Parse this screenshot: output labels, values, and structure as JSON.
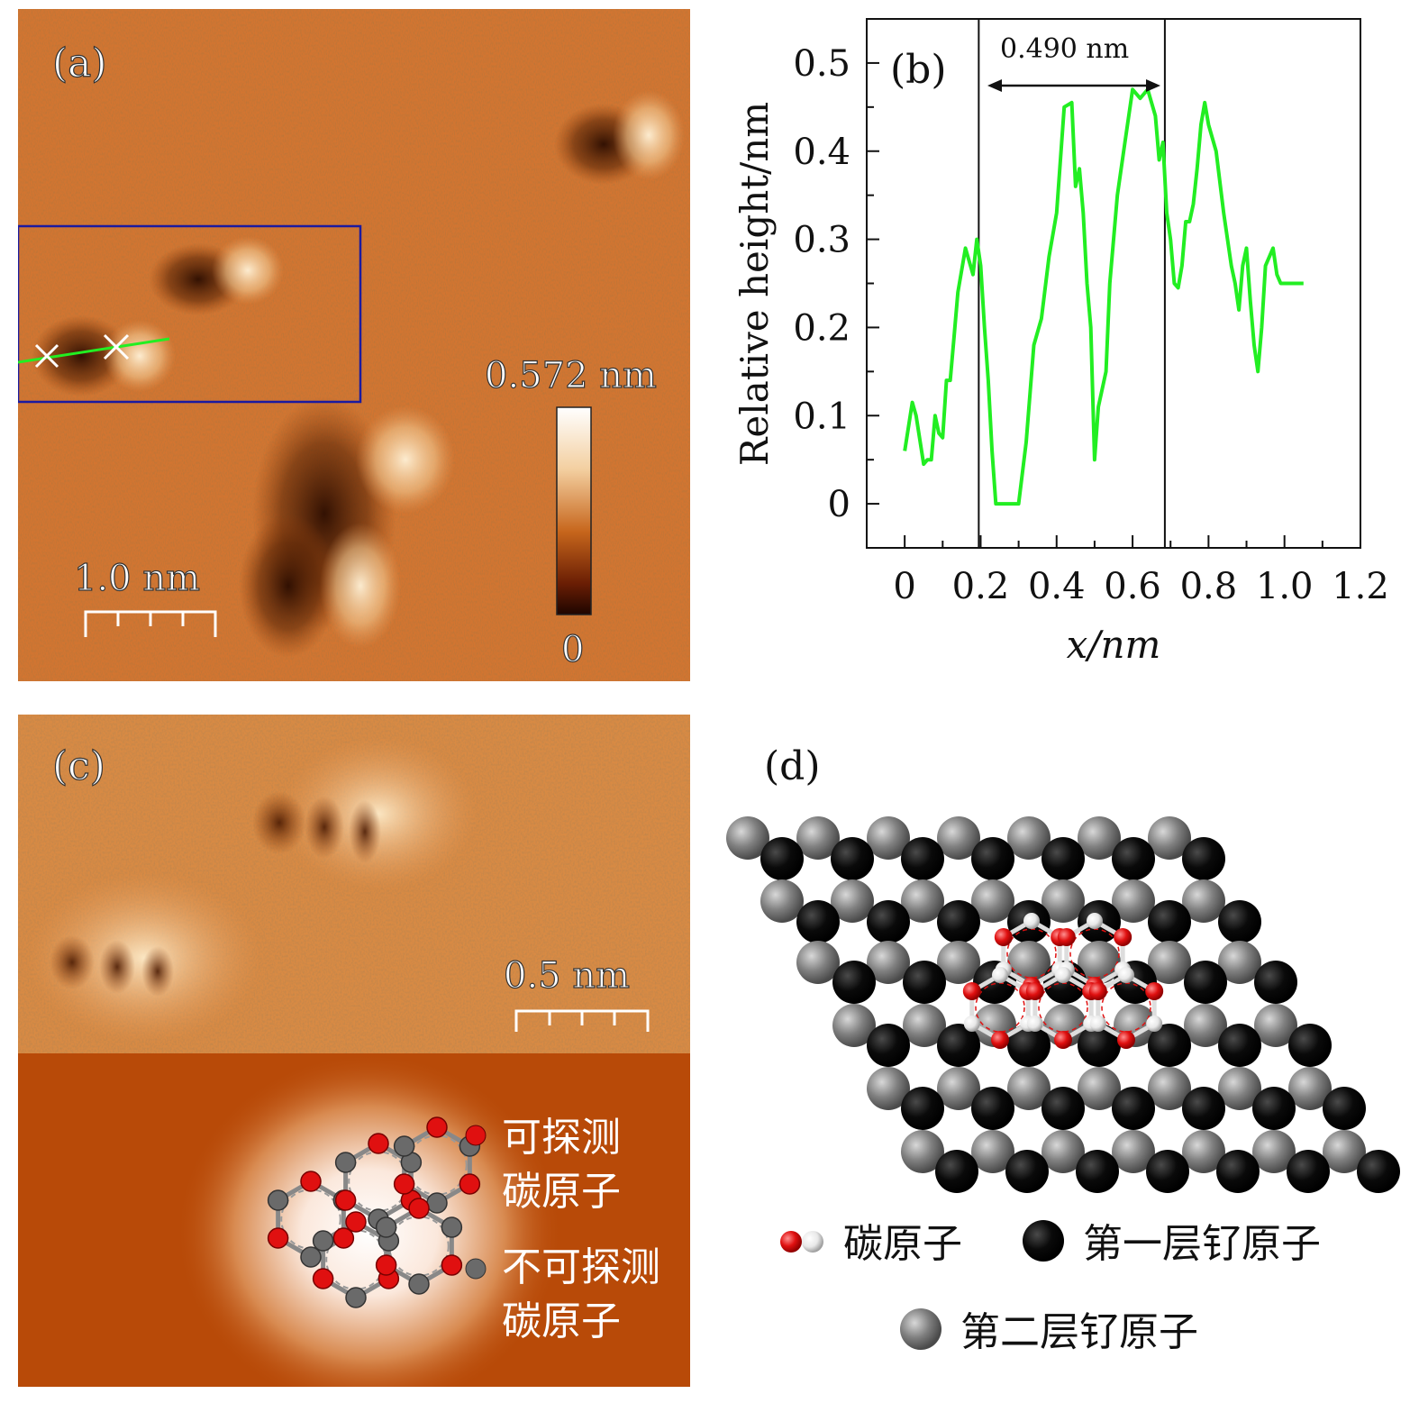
{
  "panel_a": {
    "label": "(a)",
    "colorbar_max": "0.572 nm",
    "colorbar_min": "0",
    "scalebar": "1.0 nm"
  },
  "panel_b": {
    "label": "(b)",
    "annotation": "0.490 nm"
  },
  "panel_c": {
    "label": "(c)",
    "scalebar": "0.5 nm",
    "legend_detectable_line1": "可探测",
    "legend_detectable_line2": "碳原子",
    "legend_undetectable_line1": "不可探测",
    "legend_undetectable_line2": "碳原子"
  },
  "panel_d": {
    "label": "(d)",
    "legend_carbon": "碳原子",
    "legend_ru1": "第一层钌原子",
    "legend_ru2": "第二层钌原子"
  },
  "colors": {
    "stm_base": "#c8641e",
    "stm_bottom": "#b84a08",
    "line_green": "#22ee22",
    "box_blue": "#1a1aa0",
    "carbon_red": "#e01010",
    "ru_black": "#0a0a0a",
    "ru_gray": "#808080"
  },
  "chart_data": {
    "type": "line",
    "xlabel": "x/nm",
    "ylabel": "Relative height/nm",
    "xlim": [
      -0.1,
      1.2
    ],
    "ylim": [
      -0.05,
      0.55
    ],
    "xticks": [
      "0",
      "0.2",
      "0.4",
      "0.6",
      "0.8",
      "1.0",
      "1.2"
    ],
    "yticks": [
      "0",
      "0.1",
      "0.2",
      "0.3",
      "0.4",
      "0.5"
    ],
    "vlines": [
      0.195,
      0.685
    ],
    "series": [
      {
        "x": [
          0.0,
          0.02,
          0.03,
          0.05,
          0.06,
          0.07,
          0.08,
          0.09,
          0.1,
          0.11,
          0.12,
          0.13,
          0.14,
          0.16,
          0.18,
          0.19,
          0.2,
          0.21,
          0.22,
          0.23,
          0.24,
          0.26,
          0.28,
          0.3,
          0.32,
          0.34,
          0.36,
          0.38,
          0.4,
          0.42,
          0.44,
          0.45,
          0.46,
          0.47,
          0.48,
          0.49,
          0.5,
          0.51,
          0.53,
          0.54,
          0.56,
          0.58,
          0.6,
          0.62,
          0.64,
          0.66,
          0.67,
          0.68,
          0.69,
          0.7,
          0.71,
          0.72,
          0.73,
          0.74,
          0.75,
          0.76,
          0.77,
          0.78,
          0.79,
          0.8,
          0.82,
          0.84,
          0.86,
          0.87,
          0.88,
          0.89,
          0.9,
          0.91,
          0.92,
          0.93,
          0.94,
          0.95,
          0.96,
          0.97,
          0.98,
          0.99,
          1.0,
          1.01,
          1.02,
          1.03,
          1.04,
          1.05
        ],
        "y": [
          0.06,
          0.115,
          0.1,
          0.045,
          0.05,
          0.05,
          0.1,
          0.08,
          0.075,
          0.14,
          0.14,
          0.19,
          0.24,
          0.29,
          0.26,
          0.3,
          0.27,
          0.2,
          0.14,
          0.06,
          0.0,
          0.0,
          0.0,
          0.0,
          0.07,
          0.18,
          0.21,
          0.28,
          0.33,
          0.45,
          0.455,
          0.36,
          0.38,
          0.33,
          0.25,
          0.2,
          0.05,
          0.11,
          0.15,
          0.25,
          0.35,
          0.41,
          0.47,
          0.46,
          0.47,
          0.44,
          0.39,
          0.41,
          0.33,
          0.3,
          0.25,
          0.245,
          0.27,
          0.32,
          0.32,
          0.34,
          0.38,
          0.43,
          0.455,
          0.43,
          0.4,
          0.33,
          0.27,
          0.25,
          0.22,
          0.27,
          0.29,
          0.23,
          0.18,
          0.15,
          0.2,
          0.27,
          0.28,
          0.29,
          0.26,
          0.25,
          0.25,
          0.25,
          0.25,
          0.25,
          0.25,
          0.25
        ]
      }
    ]
  }
}
